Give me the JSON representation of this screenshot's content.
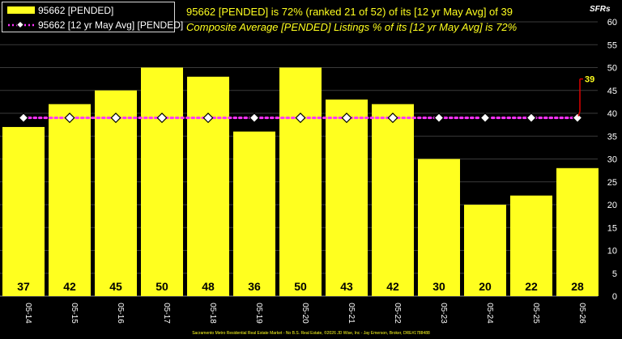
{
  "legend": {
    "bar_label": "95662 [PENDED]",
    "line_label": "95662 [12 yr May Avg] [PENDED]"
  },
  "headline": "95662 [PENDED] is 72% (ranked 21 of 52) of its [12 yr May Avg] of 39",
  "subline": "Composite Average [PENDED] Listings % of its [12 yr May Avg] is 72%",
  "unit_label": "SFRs",
  "footer": "Sacramento Metro Residential Real Estate Market - No B.S. Real Estate, ©2026 JD Wise, Inc - Jay Emerson, Broker, DRE#1788488",
  "colors": {
    "bar": "#ffff1f",
    "avg_line": "#ff33ff",
    "marker_fill": "#ffffff",
    "annotation": "#dd0000"
  },
  "chart_data": {
    "type": "bar",
    "categories": [
      "05-14",
      "05-15",
      "05-16",
      "05-17",
      "05-18",
      "05-19",
      "05-20",
      "05-21",
      "05-22",
      "05-23",
      "05-24",
      "05-25",
      "05-26"
    ],
    "series": [
      {
        "name": "95662 [PENDED]",
        "type": "bar",
        "values": [
          37,
          42,
          45,
          50,
          48,
          36,
          50,
          43,
          42,
          30,
          20,
          22,
          28
        ]
      },
      {
        "name": "95662 [12 yr May Avg] [PENDED]",
        "type": "line",
        "values": [
          39,
          39,
          39,
          39,
          39,
          39,
          39,
          39,
          39,
          39,
          39,
          39,
          39
        ]
      }
    ],
    "data_labels": [
      "37",
      "42",
      "45",
      "50",
      "48",
      "36",
      "50",
      "43",
      "42",
      "30",
      "20",
      "22",
      "28"
    ],
    "annotation_value": "39",
    "y_ticks": [
      "0",
      "5",
      "10",
      "15",
      "20",
      "25",
      "30",
      "35",
      "40",
      "45",
      "50",
      "55",
      "60"
    ],
    "ylim": [
      0,
      60
    ],
    "grid": true,
    "legend_position": "top-left"
  }
}
